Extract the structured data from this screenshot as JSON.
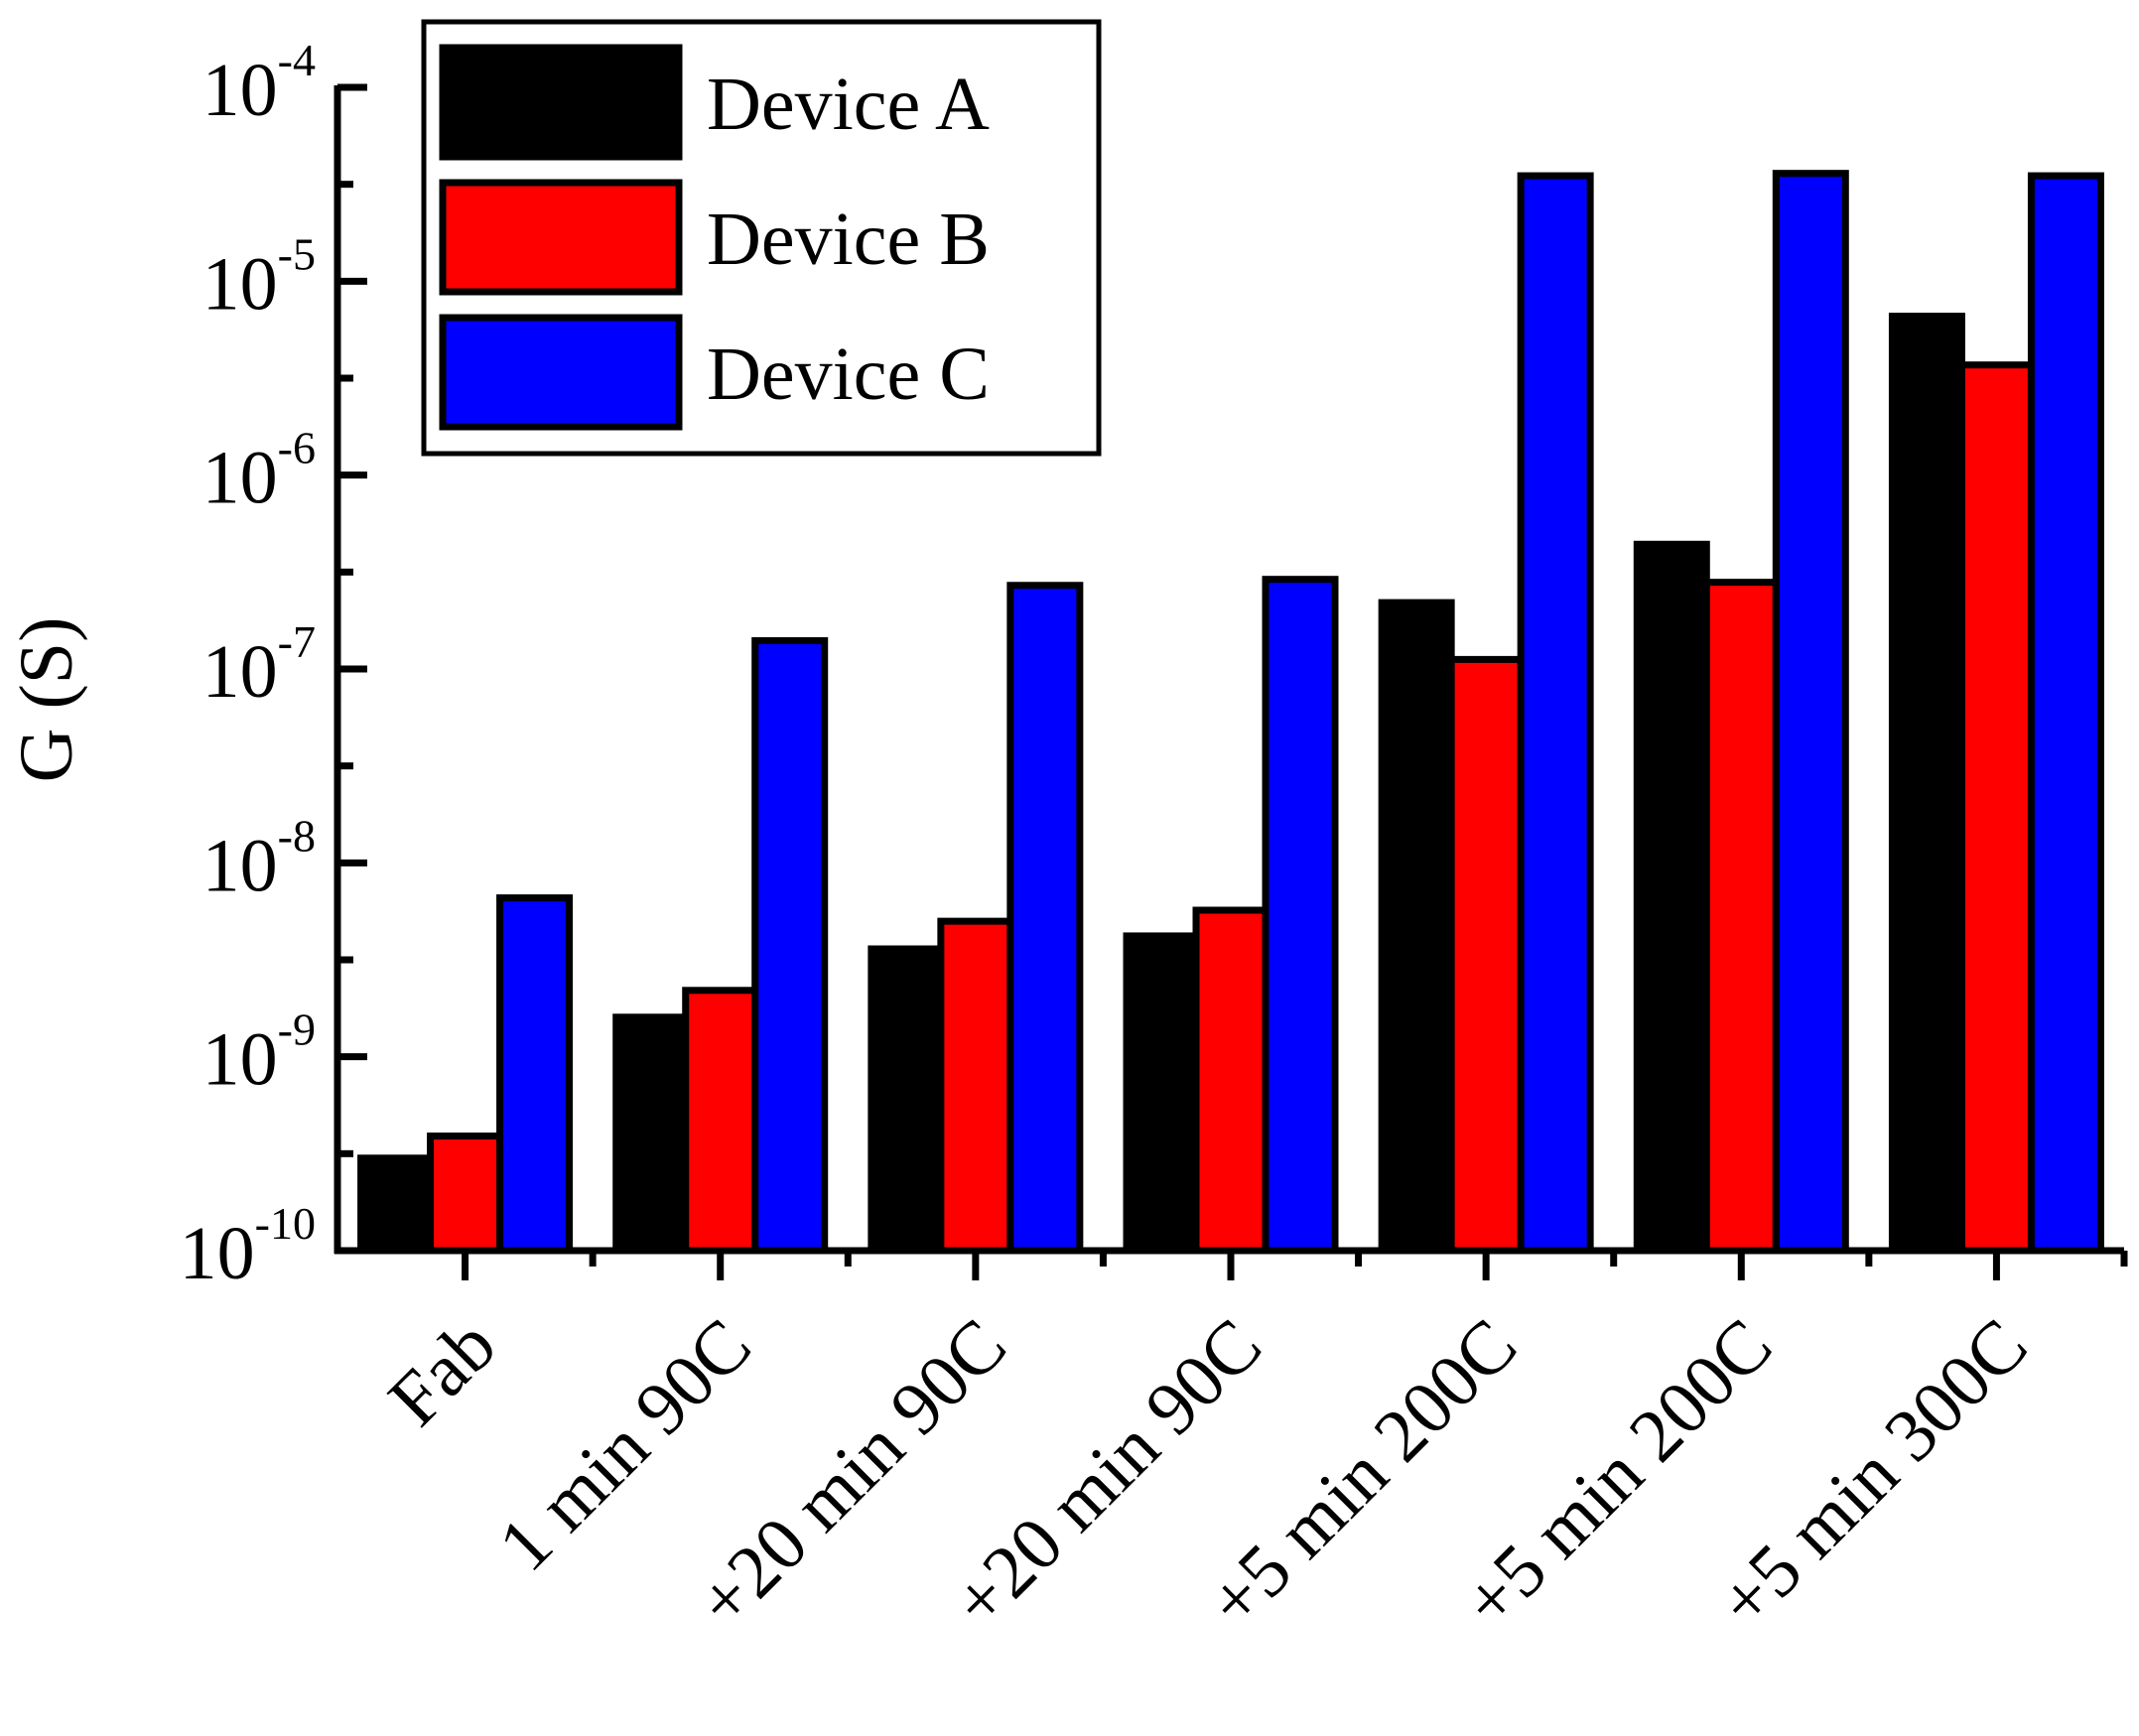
{
  "chart_data": {
    "type": "bar",
    "title": "",
    "xlabel": "",
    "ylabel": "G (S)",
    "yscale": "log",
    "ylim": [
      1e-10,
      0.0001
    ],
    "y_ticks": [
      {
        "base": "10",
        "exp": "-10",
        "value": 1e-10
      },
      {
        "base": "10",
        "exp": "-9",
        "value": 1e-09
      },
      {
        "base": "10",
        "exp": "-8",
        "value": 1e-08
      },
      {
        "base": "10",
        "exp": "-7",
        "value": 1e-07
      },
      {
        "base": "10",
        "exp": "-6",
        "value": 1e-06
      },
      {
        "base": "10",
        "exp": "-5",
        "value": 1e-05
      },
      {
        "base": "10",
        "exp": "-4",
        "value": 0.0001
      }
    ],
    "categories": [
      "Fab",
      "1 min 90C",
      "+20 min 90C",
      "+20 min 90C",
      "+5 min 200C",
      "+5 min 200C",
      "+5 min 300C"
    ],
    "series": [
      {
        "name": "Device A",
        "color": "#000000",
        "values": [
          3e-10,
          1.6e-09,
          3.6e-09,
          4.2e-09,
          2.2e-07,
          4.4e-07,
          6.6e-06
        ]
      },
      {
        "name": "Device B",
        "color": "#ff0000",
        "values": [
          3.9e-10,
          2.2e-09,
          5e-09,
          5.7e-09,
          1.12e-07,
          2.8e-07,
          3.7e-06
        ]
      },
      {
        "name": "Device C",
        "color": "#0000ff",
        "values": [
          6.6e-09,
          1.4e-07,
          2.7e-07,
          2.9e-07,
          3.5e-05,
          3.6e-05,
          3.5e-05
        ]
      }
    ],
    "legend": {
      "position": "top-left",
      "border": true
    },
    "grid": false
  }
}
